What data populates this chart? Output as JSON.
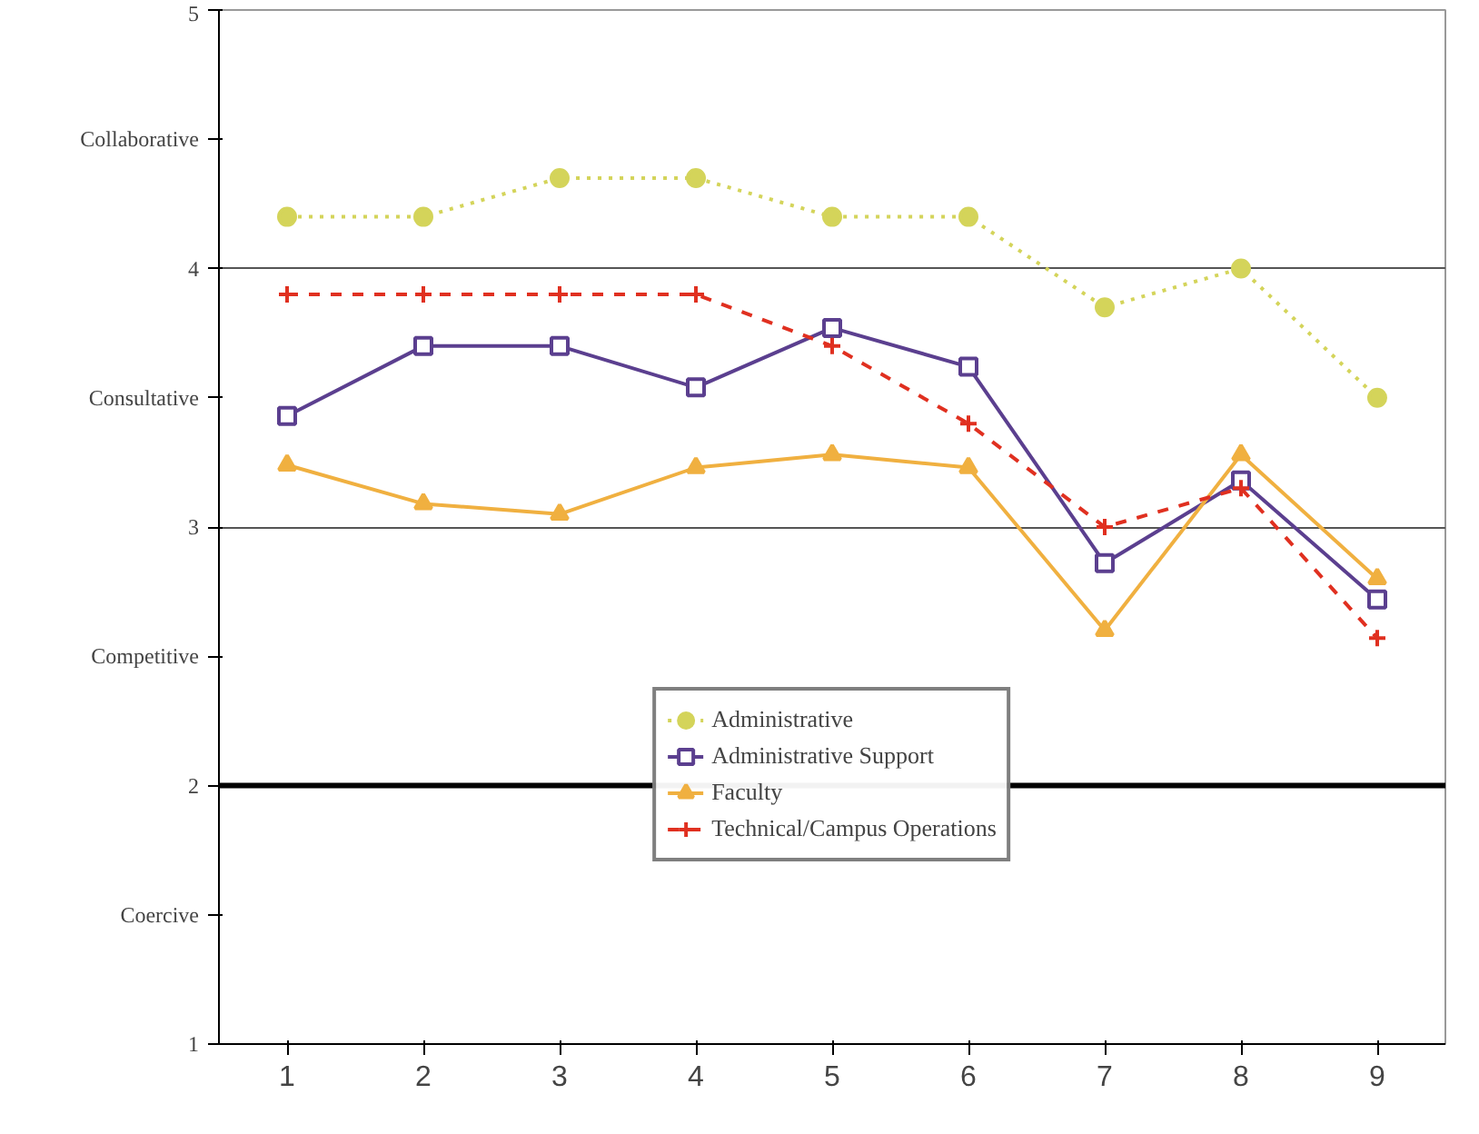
{
  "chart_data": {
    "type": "line",
    "categories": [
      "1",
      "2",
      "3",
      "4",
      "5",
      "6",
      "7",
      "8",
      "9"
    ],
    "ylim": [
      1,
      5
    ],
    "yticks": [
      1,
      {
        "value": 1.5,
        "label": "Coercive"
      },
      2,
      {
        "value": 2.5,
        "label": "Competitive"
      },
      3,
      {
        "value": 3.5,
        "label": "Consultative"
      },
      4,
      {
        "value": 4.5,
        "label": "Collaborative"
      },
      5
    ],
    "grid": "y",
    "legend": "bottom",
    "ref_lines": [
      {
        "axis": "y",
        "value": 2,
        "color": "#000000"
      }
    ],
    "series": [
      {
        "name": "Administrative",
        "color": "#d4d45a",
        "marker": "circle",
        "line_style": "dotted",
        "values": [
          4.2,
          4.2,
          4.35,
          4.35,
          4.2,
          4.2,
          3.85,
          4.0,
          3.5
        ]
      },
      {
        "name": "Administrative Support",
        "color": "#5b3f8f",
        "marker": "square",
        "line_style": "solid",
        "values": [
          3.43,
          3.7,
          3.7,
          3.54,
          3.77,
          3.62,
          2.86,
          3.18,
          2.72
        ]
      },
      {
        "name": "Faculty",
        "color": "#f0b040",
        "marker": "triangle",
        "line_style": "solid",
        "values": [
          3.24,
          3.09,
          3.05,
          3.23,
          3.28,
          3.23,
          2.6,
          3.28,
          2.8
        ]
      },
      {
        "name": "Technical/Campus Operations",
        "color": "#e03020",
        "marker": "cross",
        "line_style": "dashed",
        "values": [
          3.9,
          3.9,
          3.9,
          3.9,
          3.7,
          3.4,
          3.0,
          3.15,
          2.57
        ]
      }
    ]
  }
}
